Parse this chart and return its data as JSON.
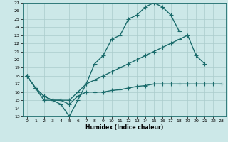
{
  "xlabel": "Humidex (Indice chaleur)",
  "bg_color": "#cce8e8",
  "grid_color": "#aacccc",
  "line_color": "#1a6b6b",
  "xlim": [
    -0.5,
    23.5
  ],
  "ylim": [
    13,
    27
  ],
  "xticks": [
    0,
    1,
    2,
    3,
    4,
    5,
    6,
    7,
    8,
    9,
    10,
    11,
    12,
    13,
    14,
    15,
    16,
    17,
    18,
    19,
    20,
    21,
    22,
    23
  ],
  "yticks": [
    13,
    14,
    15,
    16,
    17,
    18,
    19,
    20,
    21,
    22,
    23,
    24,
    25,
    26,
    27
  ],
  "line1_x": [
    0,
    1,
    2,
    3,
    4,
    5,
    6,
    7,
    8,
    9,
    10,
    11,
    12,
    13,
    14,
    15,
    16,
    17,
    18
  ],
  "line1_y": [
    18,
    16.5,
    15.0,
    15.0,
    14.5,
    13.0,
    15.0,
    17.0,
    19.5,
    20.5,
    22.5,
    23.0,
    25.0,
    25.5,
    26.5,
    27.0,
    26.5,
    25.5,
    23.5
  ],
  "line2_x": [
    0,
    1,
    2,
    3,
    4,
    5,
    6,
    7,
    8,
    9,
    10,
    11,
    12,
    13,
    14,
    15,
    16,
    17,
    18,
    19,
    20,
    21
  ],
  "line2_y": [
    18,
    16.5,
    15.5,
    15.0,
    15.0,
    15.0,
    16.0,
    17.0,
    17.5,
    18.0,
    18.5,
    19.0,
    19.5,
    20.0,
    20.5,
    21.0,
    21.5,
    22.0,
    22.5,
    23.0,
    20.5,
    19.5
  ],
  "line3_x": [
    0,
    1,
    2,
    3,
    4,
    5,
    6,
    7,
    8,
    9,
    10,
    11,
    12,
    13,
    14,
    15,
    16,
    17,
    18,
    19,
    20,
    21,
    22,
    23
  ],
  "line3_y": [
    18.0,
    16.5,
    15.5,
    15.0,
    15.0,
    14.5,
    15.5,
    16.0,
    16.0,
    16.0,
    16.2,
    16.3,
    16.5,
    16.7,
    16.8,
    17.0,
    17.0,
    17.0,
    17.0,
    17.0,
    17.0,
    17.0,
    17.0,
    17.0
  ],
  "marker_size": 4,
  "linewidth": 1.0
}
